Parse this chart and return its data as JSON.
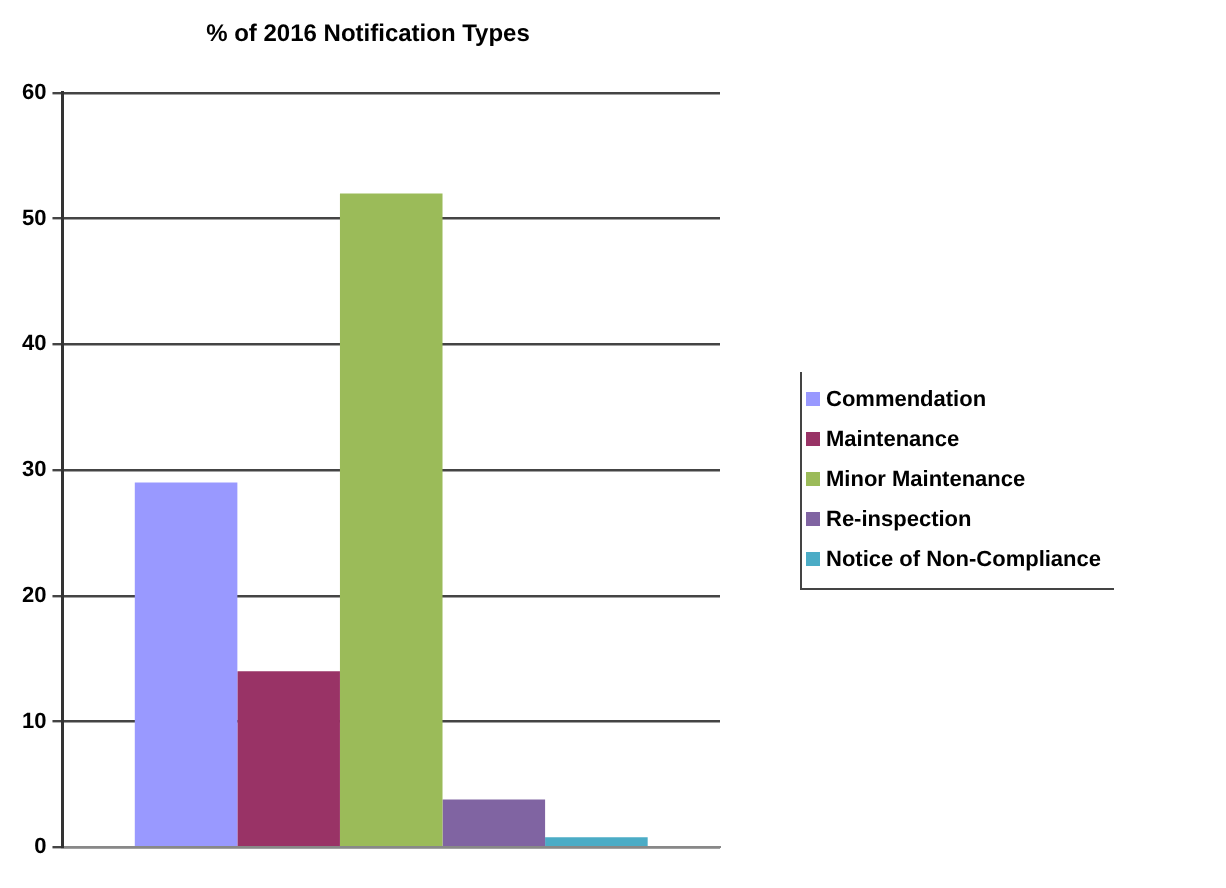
{
  "chart_data": {
    "type": "bar",
    "title": "% of 2016 Notification Types",
    "categories": [
      null
    ],
    "series": [
      {
        "name": "Commendation",
        "color": "#9999ff",
        "values": [
          29
        ]
      },
      {
        "name": "Maintenance",
        "color": "#993366",
        "values": [
          14
        ]
      },
      {
        "name": "Minor Maintenance",
        "color": "#9bbb59",
        "values": [
          52
        ]
      },
      {
        "name": "Re-inspection",
        "color": "#8064a2",
        "values": [
          3.8
        ]
      },
      {
        "name": "Notice of Non-Compliance",
        "color": "#4bacc6",
        "values": [
          0.8
        ]
      }
    ],
    "ylim": [
      0,
      60
    ],
    "yticks": [
      0,
      10,
      20,
      30,
      40,
      50,
      60
    ],
    "grid": "y",
    "legend": "right"
  }
}
